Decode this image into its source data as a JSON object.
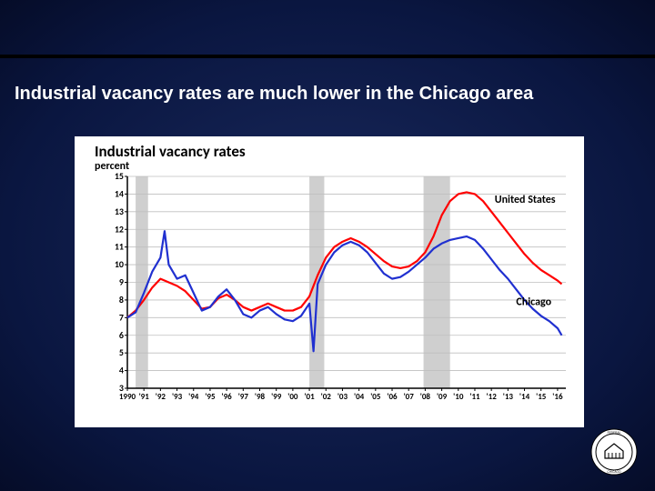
{
  "slide": {
    "title": "Industrial vacancy rates are much lower in the Chicago area"
  },
  "chart": {
    "type": "line",
    "title": "Industrial vacancy rates",
    "subtitle": "percent",
    "background_color": "#ffffff",
    "grid_color": "#bfbfbf",
    "axis_color": "#000000",
    "ylim": [
      3,
      15
    ],
    "ytick_step": 1,
    "yticks": [
      3,
      4,
      5,
      6,
      7,
      8,
      9,
      10,
      11,
      12,
      13,
      14,
      15
    ],
    "xlim": [
      1990,
      2016.5
    ],
    "xticks": [
      1990,
      1991,
      1992,
      1993,
      1994,
      1995,
      1996,
      1997,
      1998,
      1999,
      2000,
      2001,
      2002,
      2003,
      2004,
      2005,
      2006,
      2007,
      2008,
      2009,
      2010,
      2011,
      2012,
      2013,
      2014,
      2015,
      2016
    ],
    "xtick_labels": [
      "1990",
      "'91",
      "'92",
      "'93",
      "'94",
      "'95",
      "'96",
      "'97",
      "'98",
      "'99",
      "'00",
      "'01",
      "'02",
      "'03",
      "'04",
      "'05",
      "'06",
      "'07",
      "'08",
      "'09",
      "'10",
      "'11",
      "'12",
      "'13",
      "'14",
      "'15",
      "'16"
    ],
    "recession_bands": [
      {
        "start": 1990.5,
        "end": 1991.25,
        "color": "#cfcfcf"
      },
      {
        "start": 2001.0,
        "end": 2001.9,
        "color": "#cfcfcf"
      },
      {
        "start": 2007.9,
        "end": 2009.5,
        "color": "#cfcfcf"
      }
    ],
    "series": [
      {
        "name": "United States",
        "label": "United States",
        "label_x": 2012.2,
        "label_y": 13.5,
        "color": "#ff0000",
        "line_width": 2.2,
        "points": [
          [
            1990.0,
            7.0
          ],
          [
            1990.5,
            7.4
          ],
          [
            1991.0,
            8.0
          ],
          [
            1991.5,
            8.7
          ],
          [
            1992.0,
            9.2
          ],
          [
            1992.5,
            9.0
          ],
          [
            1993.0,
            8.8
          ],
          [
            1993.5,
            8.5
          ],
          [
            1994.0,
            8.0
          ],
          [
            1994.5,
            7.5
          ],
          [
            1995.0,
            7.6
          ],
          [
            1995.5,
            8.1
          ],
          [
            1996.0,
            8.3
          ],
          [
            1996.5,
            8.0
          ],
          [
            1997.0,
            7.6
          ],
          [
            1997.5,
            7.4
          ],
          [
            1998.0,
            7.6
          ],
          [
            1998.5,
            7.8
          ],
          [
            1999.0,
            7.6
          ],
          [
            1999.5,
            7.4
          ],
          [
            2000.0,
            7.4
          ],
          [
            2000.5,
            7.6
          ],
          [
            2001.0,
            8.2
          ],
          [
            2001.5,
            9.4
          ],
          [
            2002.0,
            10.4
          ],
          [
            2002.5,
            11.0
          ],
          [
            2003.0,
            11.3
          ],
          [
            2003.5,
            11.5
          ],
          [
            2004.0,
            11.3
          ],
          [
            2004.5,
            11.0
          ],
          [
            2005.0,
            10.6
          ],
          [
            2005.5,
            10.2
          ],
          [
            2006.0,
            9.9
          ],
          [
            2006.5,
            9.8
          ],
          [
            2007.0,
            9.9
          ],
          [
            2007.5,
            10.2
          ],
          [
            2008.0,
            10.7
          ],
          [
            2008.5,
            11.6
          ],
          [
            2009.0,
            12.8
          ],
          [
            2009.5,
            13.6
          ],
          [
            2010.0,
            14.0
          ],
          [
            2010.5,
            14.1
          ],
          [
            2011.0,
            14.0
          ],
          [
            2011.5,
            13.6
          ],
          [
            2012.0,
            13.0
          ],
          [
            2012.5,
            12.4
          ],
          [
            2013.0,
            11.8
          ],
          [
            2013.5,
            11.2
          ],
          [
            2014.0,
            10.6
          ],
          [
            2014.5,
            10.1
          ],
          [
            2015.0,
            9.7
          ],
          [
            2015.5,
            9.4
          ],
          [
            2016.0,
            9.1
          ],
          [
            2016.25,
            8.9
          ]
        ]
      },
      {
        "name": "Chicago",
        "label": "Chicago",
        "label_x": 2013.5,
        "label_y": 7.7,
        "color": "#2030d0",
        "line_width": 2.2,
        "points": [
          [
            1990.0,
            7.0
          ],
          [
            1990.5,
            7.3
          ],
          [
            1991.0,
            8.4
          ],
          [
            1991.5,
            9.6
          ],
          [
            1992.0,
            10.4
          ],
          [
            1992.25,
            11.9
          ],
          [
            1992.5,
            10.0
          ],
          [
            1993.0,
            9.2
          ],
          [
            1993.5,
            9.4
          ],
          [
            1994.0,
            8.4
          ],
          [
            1994.5,
            7.4
          ],
          [
            1995.0,
            7.6
          ],
          [
            1995.5,
            8.2
          ],
          [
            1996.0,
            8.6
          ],
          [
            1996.5,
            8.0
          ],
          [
            1997.0,
            7.2
          ],
          [
            1997.5,
            7.0
          ],
          [
            1998.0,
            7.4
          ],
          [
            1998.5,
            7.6
          ],
          [
            1999.0,
            7.2
          ],
          [
            1999.5,
            6.9
          ],
          [
            2000.0,
            6.8
          ],
          [
            2000.5,
            7.1
          ],
          [
            2001.0,
            7.8
          ],
          [
            2001.25,
            5.1
          ],
          [
            2001.5,
            8.9
          ],
          [
            2002.0,
            10.0
          ],
          [
            2002.5,
            10.7
          ],
          [
            2003.0,
            11.1
          ],
          [
            2003.5,
            11.3
          ],
          [
            2004.0,
            11.1
          ],
          [
            2004.5,
            10.7
          ],
          [
            2005.0,
            10.1
          ],
          [
            2005.5,
            9.5
          ],
          [
            2006.0,
            9.2
          ],
          [
            2006.5,
            9.3
          ],
          [
            2007.0,
            9.6
          ],
          [
            2007.5,
            10.0
          ],
          [
            2008.0,
            10.4
          ],
          [
            2008.5,
            10.9
          ],
          [
            2009.0,
            11.2
          ],
          [
            2009.5,
            11.4
          ],
          [
            2010.0,
            11.5
          ],
          [
            2010.5,
            11.6
          ],
          [
            2011.0,
            11.4
          ],
          [
            2011.5,
            10.9
          ],
          [
            2012.0,
            10.3
          ],
          [
            2012.5,
            9.7
          ],
          [
            2013.0,
            9.2
          ],
          [
            2013.5,
            8.6
          ],
          [
            2014.0,
            8.0
          ],
          [
            2014.5,
            7.5
          ],
          [
            2015.0,
            7.1
          ],
          [
            2015.5,
            6.8
          ],
          [
            2016.0,
            6.4
          ],
          [
            2016.25,
            6.0
          ]
        ]
      }
    ],
    "label_fontsize": 12,
    "tick_fontsize": 10
  },
  "logo": {
    "name": "federal-reserve-seal"
  }
}
